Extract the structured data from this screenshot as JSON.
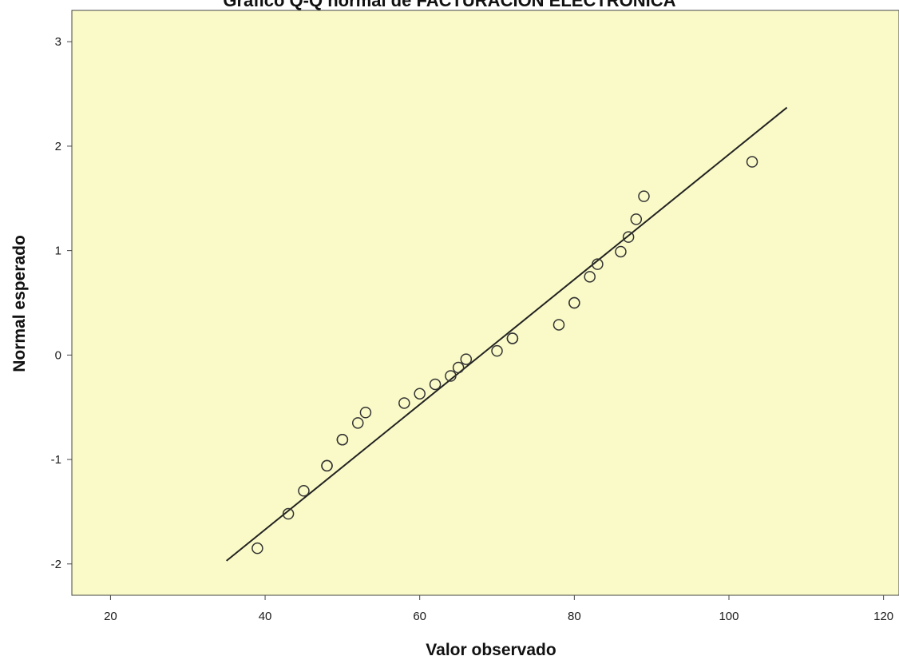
{
  "chart_data": {
    "type": "scatter",
    "title": "Gráfico Q-Q normal de FACTURACION ELECTRONICA",
    "xlabel": "Valor observado",
    "ylabel": "Normal esperado",
    "xlim": [
      15,
      122
    ],
    "ylim": [
      -2.3,
      3.3
    ],
    "xticks": [
      20,
      40,
      60,
      80,
      100,
      120
    ],
    "yticks": [
      -2,
      -1,
      0,
      1,
      2,
      3
    ],
    "plot_background": "#fafac8",
    "marker_color": "#333333",
    "line_color": "#222222",
    "reference_line": {
      "x": [
        35,
        107.5
      ],
      "y": [
        -1.97,
        2.37
      ]
    },
    "points": [
      {
        "x": 39,
        "y": -1.85
      },
      {
        "x": 43,
        "y": -1.52
      },
      {
        "x": 45,
        "y": -1.3
      },
      {
        "x": 48,
        "y": -1.06
      },
      {
        "x": 48,
        "y": -1.06
      },
      {
        "x": 50,
        "y": -0.81
      },
      {
        "x": 50,
        "y": -0.81
      },
      {
        "x": 52,
        "y": -0.65
      },
      {
        "x": 53,
        "y": -0.55
      },
      {
        "x": 58,
        "y": -0.46
      },
      {
        "x": 60,
        "y": -0.37
      },
      {
        "x": 62,
        "y": -0.28
      },
      {
        "x": 64,
        "y": -0.2
      },
      {
        "x": 65,
        "y": -0.12
      },
      {
        "x": 66,
        "y": -0.04
      },
      {
        "x": 70,
        "y": 0.04
      },
      {
        "x": 72,
        "y": 0.16
      },
      {
        "x": 72,
        "y": 0.16
      },
      {
        "x": 78,
        "y": 0.29
      },
      {
        "x": 80,
        "y": 0.5
      },
      {
        "x": 80,
        "y": 0.5
      },
      {
        "x": 82,
        "y": 0.75
      },
      {
        "x": 83,
        "y": 0.87
      },
      {
        "x": 86,
        "y": 0.99
      },
      {
        "x": 87,
        "y": 1.13
      },
      {
        "x": 88,
        "y": 1.3
      },
      {
        "x": 89,
        "y": 1.52
      },
      {
        "x": 103,
        "y": 1.85
      }
    ]
  }
}
